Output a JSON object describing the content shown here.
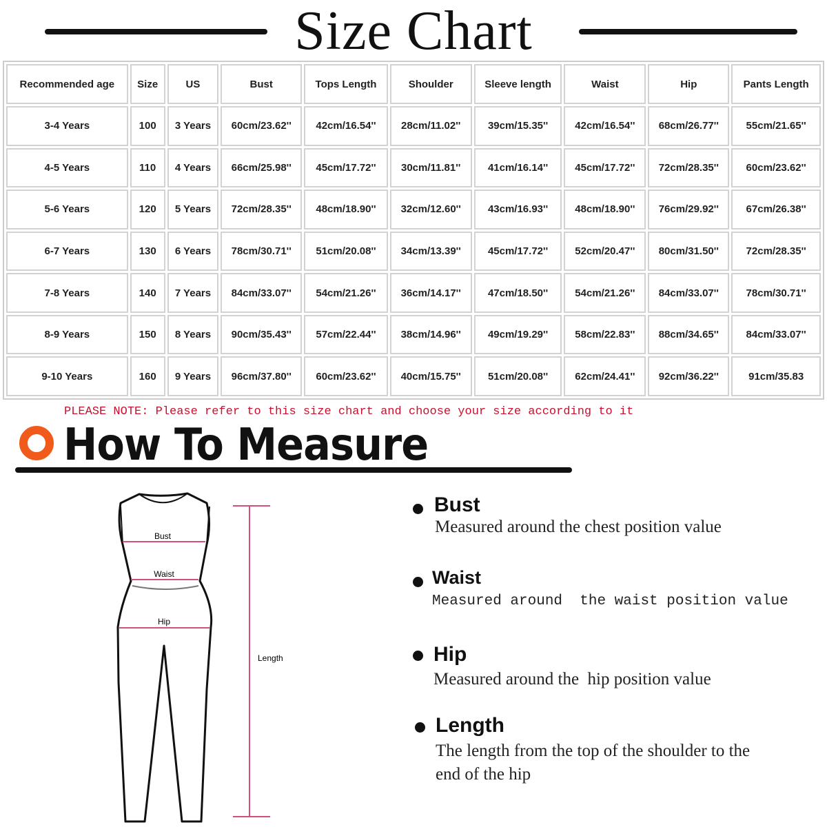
{
  "title": "Size Chart",
  "table": {
    "headers": [
      "Recommended age",
      "Size",
      "US",
      "Bust",
      "Tops Length",
      "Shoulder",
      "Sleeve length",
      "Waist",
      "Hip",
      "Pants Length"
    ],
    "rows": [
      [
        "3-4 Years",
        "100",
        "3 Years",
        "60cm/23.62''",
        "42cm/16.54''",
        "28cm/11.02''",
        "39cm/15.35''",
        "42cm/16.54''",
        "68cm/26.77''",
        "55cm/21.65''"
      ],
      [
        "4-5 Years",
        "110",
        "4 Years",
        "66cm/25.98''",
        "45cm/17.72''",
        "30cm/11.81''",
        "41cm/16.14''",
        "45cm/17.72''",
        "72cm/28.35''",
        "60cm/23.62''"
      ],
      [
        "5-6 Years",
        "120",
        "5 Years",
        "72cm/28.35''",
        "48cm/18.90''",
        "32cm/12.60''",
        "43cm/16.93''",
        "48cm/18.90''",
        "76cm/29.92''",
        "67cm/26.38''"
      ],
      [
        "6-7 Years",
        "130",
        "6 Years",
        "78cm/30.71''",
        "51cm/20.08''",
        "34cm/13.39''",
        "45cm/17.72''",
        "52cm/20.47''",
        "80cm/31.50''",
        "72cm/28.35''"
      ],
      [
        "7-8 Years",
        "140",
        "7 Years",
        "84cm/33.07''",
        "54cm/21.26''",
        "36cm/14.17''",
        "47cm/18.50''",
        "54cm/21.26''",
        "84cm/33.07''",
        "78cm/30.71''"
      ],
      [
        "8-9 Years",
        "150",
        "8 Years",
        "90cm/35.43''",
        "57cm/22.44''",
        "38cm/14.96''",
        "49cm/19.29''",
        "58cm/22.83''",
        "88cm/34.65''",
        "84cm/33.07''"
      ],
      [
        "9-10 Years",
        "160",
        "9 Years",
        "96cm/37.80''",
        "60cm/23.62''",
        "40cm/15.75''",
        "51cm/20.08''",
        "62cm/24.41''",
        "92cm/36.22''",
        "91cm/35.83"
      ]
    ]
  },
  "note": "PLEASE NOTE: Please refer to this size chart and choose your size according to it",
  "measure": {
    "title": "How To Measure",
    "figure_labels": {
      "bust": "Bust",
      "waist": "Waist",
      "hip": "Hip",
      "length": "Length"
    },
    "items": [
      {
        "heading": "Bust",
        "desc": "Measured around the chest position value"
      },
      {
        "heading": "Waist",
        "desc": "Measured around  the waist position value"
      },
      {
        "heading": "Hip",
        "desc": "Measured around the  hip position value"
      },
      {
        "heading": "Length",
        "desc": "The length from the top of the shoulder to the end of the hip"
      }
    ]
  },
  "colors": {
    "note": "#c8102e",
    "ring": "#f05a1a",
    "measure_line": "#d0507a"
  }
}
